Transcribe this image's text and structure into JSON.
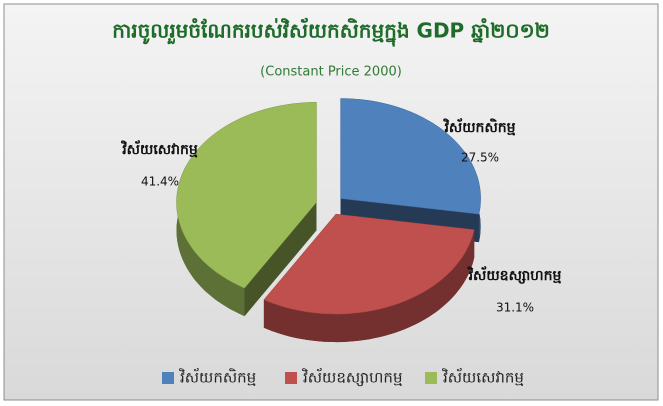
{
  "chart_data": {
    "type": "pie",
    "title": "ការចូលរួមចំណែករបស់វិស័យកសិកម្មក្នុង GDP ឆ្នាំ២០១២",
    "subtitle": "(Constant Price 2000)",
    "categories": [
      "វិស័យកសិកម្ម",
      "វិស័យឧស្សាហកម្ម",
      "វិស័យសេវាកម្ម"
    ],
    "values": [
      27.5,
      31.1,
      41.4
    ],
    "value_labels": [
      "27.5%",
      "31.1%",
      "41.4%"
    ],
    "colors": [
      "#4f81bd",
      "#c0504d",
      "#9bbb59"
    ],
    "legend": "bottom"
  }
}
